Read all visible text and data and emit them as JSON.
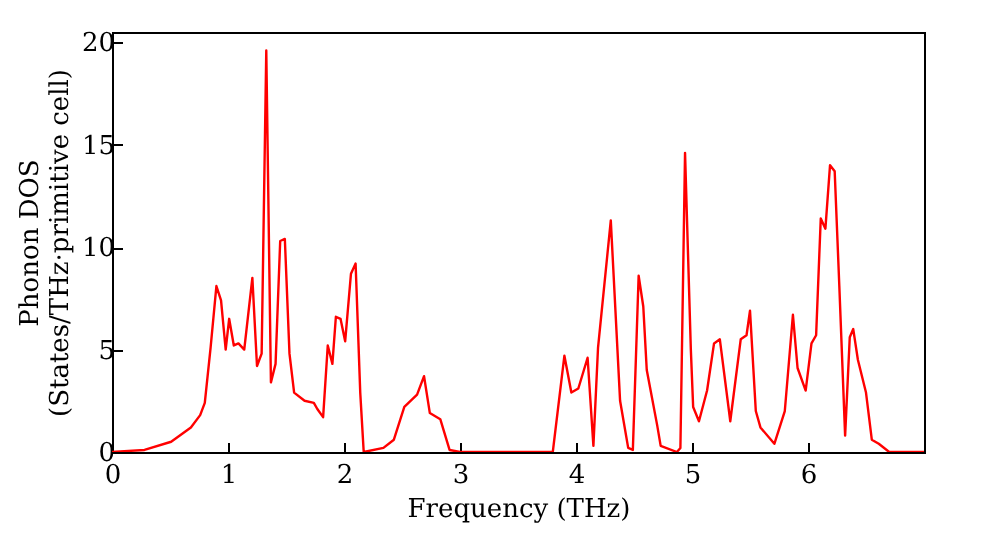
{
  "chart_data": {
    "type": "line",
    "xlabel": "Frequency (THz)",
    "ylabel": "Phonon DOS\n(States/THz·primitive cell)",
    "x": [
      0,
      0.28,
      0.51,
      0.68,
      0.76,
      0.8,
      0.85,
      0.9,
      0.94,
      0.98,
      1.01,
      1.05,
      1.09,
      1.14,
      1.21,
      1.25,
      1.29,
      1.33,
      1.37,
      1.41,
      1.45,
      1.49,
      1.53,
      1.57,
      1.66,
      1.74,
      1.77,
      1.82,
      1.86,
      1.9,
      1.93,
      1.97,
      2.01,
      2.06,
      2.1,
      2.14,
      2.17,
      2.34,
      2.43,
      2.52,
      2.63,
      2.69,
      2.74,
      2.83,
      2.91,
      3.0,
      3.8,
      3.9,
      3.96,
      4.02,
      4.1,
      4.15,
      4.19,
      4.3,
      4.38,
      4.45,
      4.49,
      4.54,
      4.58,
      4.61,
      4.7,
      4.73,
      4.87,
      4.9,
      4.94,
      4.99,
      5.01,
      5.06,
      5.13,
      5.19,
      5.24,
      5.33,
      5.42,
      5.47,
      5.5,
      5.55,
      5.59,
      5.71,
      5.8,
      5.87,
      5.91,
      5.98,
      6.03,
      6.07,
      6.11,
      6.15,
      6.19,
      6.23,
      6.27,
      6.32,
      6.36,
      6.39,
      6.43,
      6.5,
      6.55,
      6.61,
      6.7,
      7.0
    ],
    "series": [
      {
        "color": "#ff0000",
        "values": [
          0,
          0.1,
          0.5,
          1.2,
          1.8,
          2.4,
          5.1,
          8.1,
          7.4,
          5.0,
          6.5,
          5.2,
          5.3,
          5.0,
          8.5,
          4.2,
          4.8,
          19.6,
          3.4,
          4.3,
          10.3,
          10.4,
          4.8,
          2.9,
          2.5,
          2.4,
          2.1,
          1.7,
          5.2,
          4.3,
          6.6,
          6.5,
          5.4,
          8.7,
          9.2,
          2.9,
          0,
          0.2,
          0.6,
          2.2,
          2.8,
          3.7,
          1.9,
          1.6,
          0.1,
          0,
          0,
          4.7,
          2.9,
          3.1,
          4.6,
          0.3,
          5.1,
          11.3,
          2.5,
          0.2,
          0.1,
          8.6,
          7.1,
          4.0,
          1.3,
          0.3,
          0,
          0.2,
          14.6,
          5.0,
          2.2,
          1.5,
          3.0,
          5.3,
          5.5,
          1.5,
          5.5,
          5.7,
          6.9,
          2.0,
          1.2,
          0.4,
          2.0,
          6.7,
          4.1,
          3.0,
          5.3,
          5.7,
          11.4,
          10.9,
          14.0,
          13.7,
          8.1,
          0.8,
          5.6,
          6.0,
          4.5,
          2.9,
          0.6,
          0.4,
          0,
          0
        ]
      }
    ],
    "xlim": [
      0,
      7
    ],
    "ylim": [
      0,
      20.5
    ],
    "xticks": [
      0,
      1,
      2,
      3,
      4,
      5,
      6
    ],
    "yticks": [
      0,
      5,
      10,
      15,
      20
    ],
    "grid": false
  }
}
